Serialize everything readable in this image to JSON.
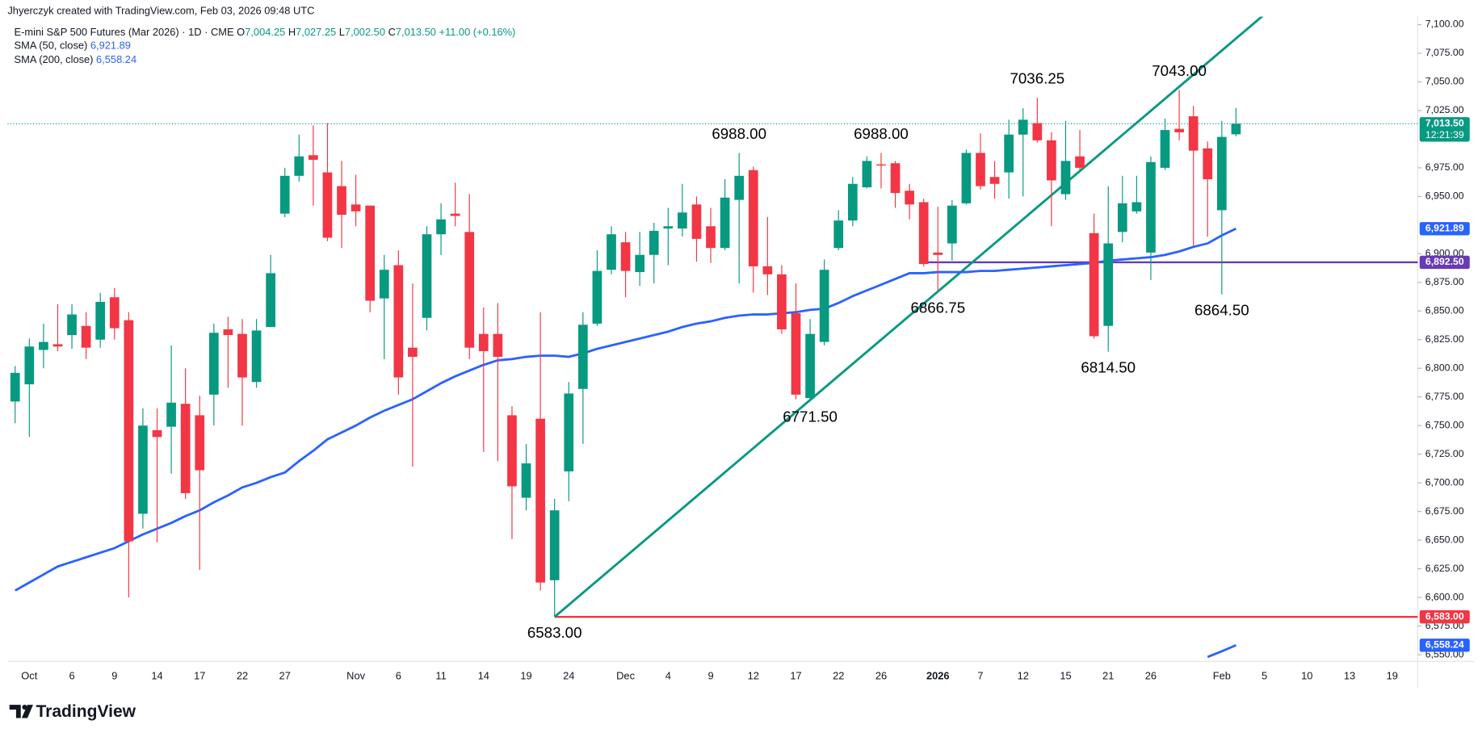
{
  "chart_data": {
    "type": "candlestick",
    "header": {
      "credit": "Jhyerczyk created with TradingView.com, Feb 03, 2026 09:48 UTC",
      "symbol": "E-mini S&P 500 Futures (Mar 2026) · 1D · CME",
      "ohlc": [
        {
          "key": "O",
          "label": "7,004.25"
        },
        {
          "key": "H",
          "label": "7,027.25"
        },
        {
          "key": "L",
          "label": "7,002.50"
        },
        {
          "key": "C",
          "label": "7,013.50"
        }
      ],
      "change": "+11.00 (+0.16%)"
    },
    "brand": "TradingView",
    "up_color": "#089981",
    "down_color": "#f23645",
    "categories": [
      null,
      "Oct",
      null,
      null,
      "6",
      null,
      null,
      "9",
      null,
      null,
      "14",
      null,
      null,
      "17",
      null,
      null,
      "22",
      null,
      null,
      "27",
      null,
      null,
      null,
      null,
      "Nov",
      null,
      null,
      "6",
      null,
      null,
      "11",
      null,
      null,
      "14",
      null,
      null,
      "19",
      null,
      null,
      "24",
      null,
      null,
      null,
      "Dec",
      null,
      null,
      "4",
      null,
      null,
      "9",
      null,
      null,
      "12",
      null,
      null,
      "17",
      null,
      null,
      "22",
      null,
      null,
      "26",
      null,
      null,
      null,
      "2026",
      null,
      null,
      "7",
      null,
      null,
      "12",
      null,
      null,
      "15",
      null,
      null,
      "21",
      null,
      null,
      "26",
      null,
      null,
      null,
      null,
      "Feb",
      null,
      null,
      "5",
      null,
      null,
      "10",
      null,
      null,
      "13",
      null,
      null,
      "19",
      null
    ],
    "open": [
      6771,
      6786,
      6816,
      6821,
      6829,
      6837,
      6825,
      6862,
      6842,
      6673,
      6746,
      6749,
      6769,
      6759,
      6777,
      6834,
      6830,
      6788,
      6836,
      6935,
      6968,
      6986,
      6971,
      6959,
      6943,
      6942,
      6861,
      6890,
      6818,
      6844,
      6917,
      6935,
      6919,
      6830,
      6830,
      6759,
      6687,
      6756,
      6615,
      6710,
      6782,
      6839,
      6886,
      6910,
      6884,
      6899,
      6922,
      6922,
      6943,
      6924,
      6905,
      6947,
      6973,
      6889,
      6882,
      6848,
      6774,
      6823,
      6905,
      6929,
      6958,
      6978,
      6979,
      6955,
      6945,
      6901,
      6909,
      6944,
      6988,
      6967,
      6971,
      7004,
      7014,
      6999,
      6952,
      6985,
      6918,
      6837,
      6919,
      6937,
      6901,
      6975,
      7009,
      7020,
      6992,
      6938,
      7004.25,
      null,
      null,
      null,
      null,
      null,
      null,
      null,
      null,
      null,
      null,
      null,
      null
    ],
    "high": [
      6802,
      6826,
      6839,
      6856,
      6856,
      6849,
      6866,
      6870,
      6849,
      6765,
      6765,
      6820,
      6800,
      6776,
      6839,
      6845,
      6843,
      6843,
      6899,
      6975,
      7004,
      7012,
      7014,
      6981,
      6969,
      6942,
      6899,
      6903,
      6874,
      6924,
      6944,
      6962,
      6952,
      6853,
      6857,
      6767,
      6734,
      6849,
      6686,
      6788,
      6849,
      6903,
      6924,
      6919,
      6919,
      6927,
      6940,
      6961,
      6950,
      6940,
      6965,
      6988,
      6976,
      6932,
      6890,
      6874,
      6843,
      6895,
      6938,
      6967,
      6985,
      6988,
      6981,
      6961,
      6948,
      6941,
      6947,
      6991,
      7005,
      6981,
      7017,
      7027,
      7036.25,
      7006,
      7016,
      7008,
      6935,
      6959,
      6968,
      6968,
      6985,
      7018,
      7043,
      7029,
      6998,
      7016,
      7027.25,
      null,
      null,
      null,
      null,
      null,
      null,
      null,
      null,
      null,
      null,
      null,
      null
    ],
    "low": [
      6752,
      6740,
      6800,
      6815,
      6817,
      6808,
      6818,
      6825,
      6600,
      6660,
      6648,
      6708,
      6686,
      6624,
      6750,
      6783,
      6750,
      6783,
      6836,
      6932,
      6963,
      6942,
      6911,
      6905,
      6924,
      6849,
      6808,
      6777,
      6714,
      6833,
      6899,
      6924,
      6808,
      6727,
      6719,
      6651,
      6676,
      6606,
      6583,
      6684,
      6734,
      6837,
      6882,
      6862,
      6872,
      6874,
      6890,
      6915,
      6893,
      6892,
      6903,
      6874,
      6866,
      6864,
      6830,
      6773,
      6771.5,
      6820,
      6903,
      6924,
      6957,
      6957,
      6940,
      6930,
      6889,
      6866.75,
      6894,
      6943,
      6956,
      6948,
      6948,
      6950,
      6997,
      6924,
      6947,
      6973,
      6826,
      6814.5,
      6910,
      6935,
      6877,
      6973,
      6999,
      6907,
      6915,
      6864.5,
      7002.5,
      null,
      null,
      null,
      null,
      null,
      null,
      null,
      null,
      null,
      null,
      null,
      null
    ],
    "close": [
      6796,
      6819,
      6823,
      6819,
      6847,
      6818,
      6858,
      6835,
      6649,
      6750,
      6740,
      6770,
      6691,
      6711,
      6831,
      6829,
      6792,
      6833,
      6883,
      6968,
      6985,
      6982,
      6914,
      6934,
      6937,
      6859,
      6886,
      6792,
      6810,
      6917,
      6930,
      6933,
      6818,
      6815,
      6810,
      6697,
      6717,
      6613,
      6676,
      6778,
      6838,
      6885,
      6917,
      6885,
      6899,
      6920,
      6924,
      6936,
      6913,
      6905,
      6949,
      6968,
      6889,
      6882,
      6834,
      6777,
      6830,
      6886,
      6929,
      6961,
      6981,
      6977,
      6953,
      6943,
      6891,
      6899,
      6942,
      6988,
      6959,
      6961,
      7004,
      7017,
      6999,
      6964,
      6981,
      6975,
      6828,
      6909,
      6944,
      6945,
      6980,
      7008,
      7006,
      6990,
      6965,
      7002,
      7013.5,
      null,
      null,
      null,
      null,
      null,
      null,
      null,
      null,
      null,
      null,
      null,
      null
    ],
    "series": [
      {
        "name": "SMA (50, close)",
        "last_label": "6,921.89",
        "color": "#2962ff",
        "values": [
          6606,
          6613,
          6620,
          6627,
          6631,
          6635,
          6639,
          6643,
          6649,
          6655,
          6660,
          6665,
          6671,
          6676,
          6683,
          6689,
          6696,
          6700,
          6705,
          6709,
          6719,
          6728,
          6738,
          6744,
          6750,
          6757,
          6763,
          6768,
          6773,
          6780,
          6787,
          6793,
          6798,
          6803,
          6807,
          6808,
          6810,
          6811,
          6811,
          6810,
          6813,
          6817,
          6820,
          6823,
          6826,
          6829,
          6832,
          6836,
          6839,
          6841,
          6844,
          6846,
          6847,
          6847,
          6848,
          6849,
          6851,
          6852,
          6857,
          6863,
          6868,
          6873,
          6878,
          6883,
          6883,
          6884,
          6884,
          6884,
          6885,
          6885,
          6886,
          6887,
          6888,
          6889,
          6890,
          6891,
          6892,
          6894,
          6895,
          6896,
          6897,
          6899,
          6902,
          6906,
          6909,
          6916,
          6921.89,
          null,
          null,
          null,
          null,
          null,
          null,
          null,
          null,
          null,
          null,
          null,
          null
        ]
      },
      {
        "name": "SMA (200, close)",
        "last_label": "6,558.24",
        "color": "#2962ff",
        "values": [
          null,
          null,
          null,
          null,
          null,
          null,
          null,
          null,
          null,
          null,
          null,
          null,
          null,
          null,
          null,
          null,
          null,
          null,
          null,
          null,
          null,
          null,
          null,
          null,
          null,
          null,
          null,
          null,
          null,
          null,
          null,
          null,
          null,
          null,
          null,
          null,
          null,
          null,
          null,
          null,
          null,
          null,
          null,
          null,
          null,
          null,
          null,
          null,
          null,
          null,
          null,
          null,
          null,
          null,
          null,
          null,
          null,
          null,
          null,
          null,
          null,
          null,
          null,
          null,
          null,
          null,
          null,
          null,
          null,
          null,
          null,
          null,
          null,
          null,
          null,
          null,
          null,
          null,
          null,
          null,
          null,
          null,
          null,
          null,
          6548,
          6553,
          6558.24,
          null,
          null,
          null,
          null,
          null,
          null,
          null,
          null,
          null,
          null,
          null,
          null
        ]
      }
    ],
    "hlines": [
      {
        "value": 6892.5,
        "color": "#673ab7",
        "start": 64
      },
      {
        "value": 6583,
        "color": "#f23645",
        "start": 38
      }
    ],
    "trendline": {
      "color": "#089981",
      "points": [
        {
          "index": 38,
          "value": 6583
        },
        {
          "index": 65,
          "value": 6867
        }
      ]
    },
    "annotations": [
      {
        "text": "7036.25",
        "index": 72,
        "position": "above"
      },
      {
        "text": "7043.00",
        "index": 82,
        "position": "above"
      },
      {
        "text": "6988.00",
        "index": 51,
        "position": "above"
      },
      {
        "text": "6988.00",
        "index": 61,
        "position": "above"
      },
      {
        "text": "6866.75",
        "index": 65,
        "position": "below"
      },
      {
        "text": "6864.50",
        "index": 85,
        "position": "below"
      },
      {
        "text": "6814.50",
        "index": 77,
        "position": "below"
      },
      {
        "text": "6771.50",
        "index": 56,
        "position": "below"
      },
      {
        "text": "6583.00",
        "index": 38,
        "position": "below"
      }
    ],
    "price_tags": [
      {
        "label": "7,013.50",
        "sub": "12:21:39",
        "value": 7013.5,
        "color": "#089981"
      },
      {
        "label": "6,921.89",
        "value": 6921.89,
        "color": "#2962ff"
      },
      {
        "label": "6,892.50",
        "value": 6892.5,
        "color": "#673ab7"
      },
      {
        "label": "6,583.00",
        "value": 6583,
        "color": "#f23645"
      },
      {
        "label": "6,558.24",
        "value": 6558.24,
        "color": "#2962ff"
      }
    ],
    "ylim": [
      6545,
      7107
    ],
    "yticks": [
      {
        "value": 6550,
        "label": "6,550.00"
      },
      {
        "value": 6575,
        "label": "6,575.00"
      },
      {
        "value": 6600,
        "label": "6,600.00"
      },
      {
        "value": 6625,
        "label": "6,625.00"
      },
      {
        "value": 6650,
        "label": "6,650.00"
      },
      {
        "value": 6675,
        "label": "6,675.00"
      },
      {
        "value": 6700,
        "label": "6,700.00"
      },
      {
        "value": 6725,
        "label": "6,725.00"
      },
      {
        "value": 6750,
        "label": "6,750.00"
      },
      {
        "value": 6775,
        "label": "6,775.00"
      },
      {
        "value": 6800,
        "label": "6,800.00"
      },
      {
        "value": 6825,
        "label": "6,825.00"
      },
      {
        "value": 6850,
        "label": "6,850.00"
      },
      {
        "value": 6875,
        "label": "6,875.00"
      },
      {
        "value": 6900,
        "label": "6,900.00"
      },
      {
        "value": 6950,
        "label": "6,950.00"
      },
      {
        "value": 6975,
        "label": "6,975.00"
      },
      {
        "value": 7025,
        "label": "7,025.00"
      },
      {
        "value": 7050,
        "label": "7,050.00"
      },
      {
        "value": 7075,
        "label": "7,075.00"
      },
      {
        "value": 7100,
        "label": "7,100.00"
      }
    ],
    "grid": false
  }
}
